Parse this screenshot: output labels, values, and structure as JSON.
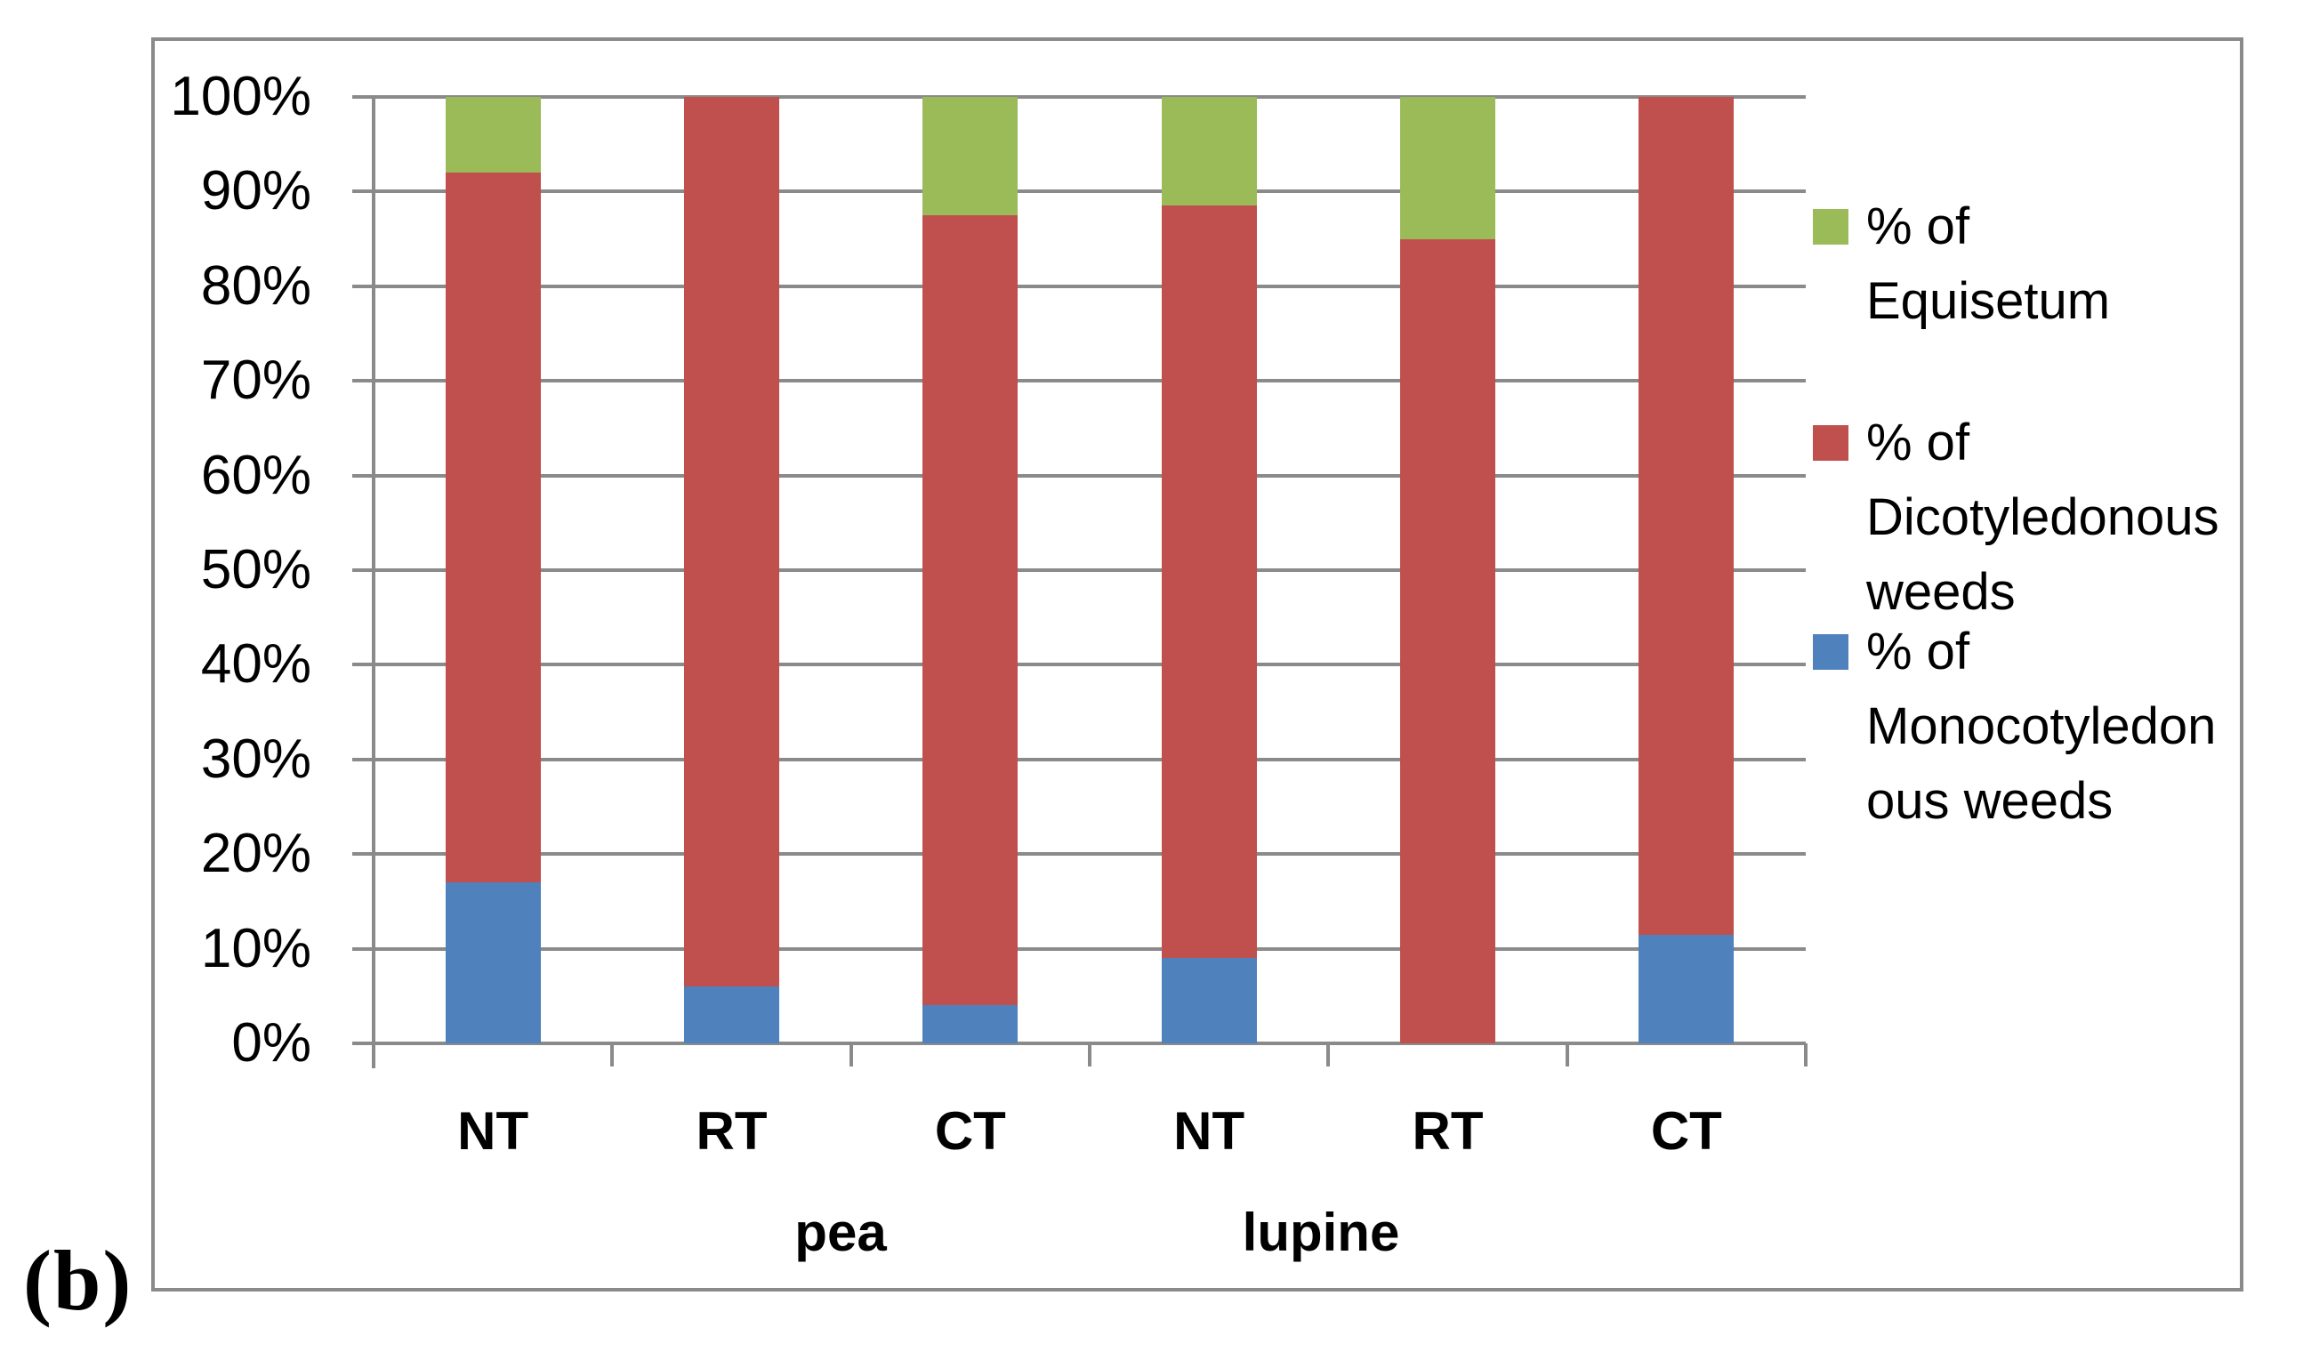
{
  "figure_label": "(b)",
  "chart_data": {
    "type": "bar",
    "subtype": "stacked-100-percent",
    "title": "",
    "xlabel": "",
    "ylabel": "",
    "categories": [
      "NT",
      "RT",
      "CT",
      "NT",
      "RT",
      "CT"
    ],
    "group_labels": [
      "pea",
      "lupine"
    ],
    "series": [
      {
        "name": "% of Monocotyledonous weeds",
        "color": "#4F81BD",
        "values": [
          17,
          6,
          4,
          9,
          0,
          11.5
        ]
      },
      {
        "name": "% of Dicotyledonous weeds",
        "color": "#C0504D",
        "values": [
          75,
          94,
          83.5,
          79.5,
          85,
          88.5
        ]
      },
      {
        "name": "% of Equisetum",
        "color": "#9BBB59",
        "values": [
          8,
          0,
          12.5,
          11.5,
          15,
          0
        ]
      }
    ],
    "y_axis": {
      "min": 0,
      "max": 100,
      "tick_labels": [
        "100%",
        "90%",
        "80%",
        "70%",
        "60%",
        "50%",
        "40%",
        "30%",
        "20%",
        "10%",
        "0%"
      ]
    },
    "legend": {
      "position": "right",
      "entries": [
        {
          "label": "% of Equisetum",
          "display": "% of Equisetum",
          "color": "#9BBB59"
        },
        {
          "label": "% of Dicotyledonous weeds",
          "display": "% of\nDicotyledonous\nweeds",
          "color": "#C0504D"
        },
        {
          "label": "% of Monocotyledonous weeds",
          "display": "% of\nMonocotyledon\nous weeds",
          "color": "#4F81BD"
        }
      ]
    },
    "grid": true,
    "colors": {
      "gridline": "#8A8A8A",
      "plot_border": "#8A8A8A",
      "text": "#000000",
      "background": "#FFFFFF"
    }
  }
}
